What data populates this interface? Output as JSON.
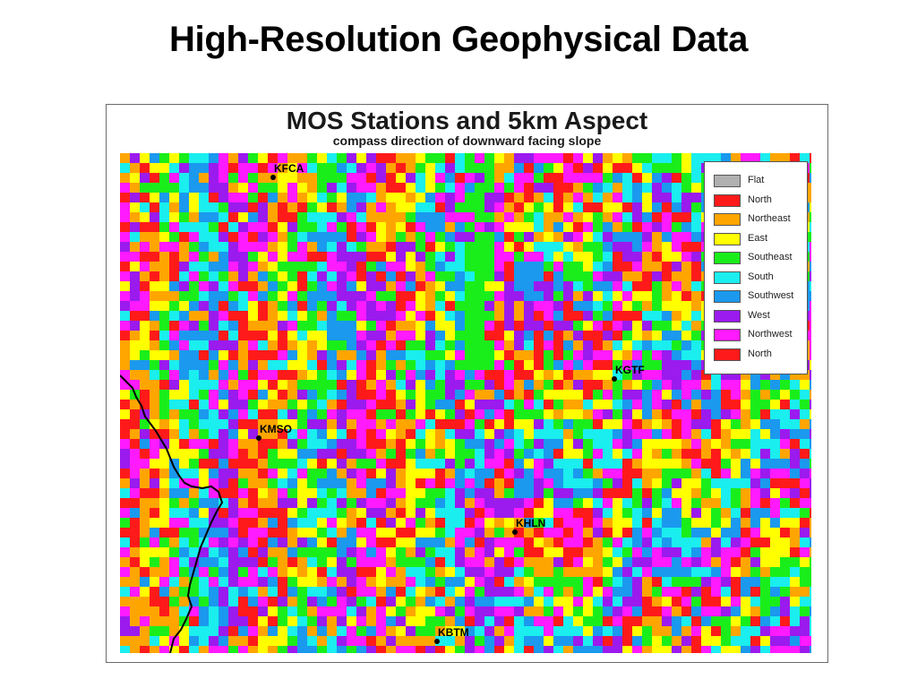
{
  "slide": {
    "title": "High-Resolution Geophysical Data"
  },
  "map": {
    "title": "MOS Stations and 5km Aspect",
    "subtitle": "compass direction of downward facing slope"
  },
  "legend": [
    {
      "label": "Flat",
      "color": "#b0b0b0"
    },
    {
      "label": "North",
      "color": "#ff1a1a"
    },
    {
      "label": "Northeast",
      "color": "#ffa500"
    },
    {
      "label": "East",
      "color": "#ffff00"
    },
    {
      "label": "Southeast",
      "color": "#1aee1a"
    },
    {
      "label": "South",
      "color": "#1aeeee"
    },
    {
      "label": "Southwest",
      "color": "#1a99ee"
    },
    {
      "label": "West",
      "color": "#9b1aee"
    },
    {
      "label": "Northwest",
      "color": "#ff1aff"
    },
    {
      "label": "North",
      "color": "#ff1a1a"
    }
  ],
  "stations": [
    {
      "id": "KFCA"
    },
    {
      "id": "KGTF"
    },
    {
      "id": "KMSO"
    },
    {
      "id": "KHLN"
    },
    {
      "id": "KBTM"
    }
  ]
}
